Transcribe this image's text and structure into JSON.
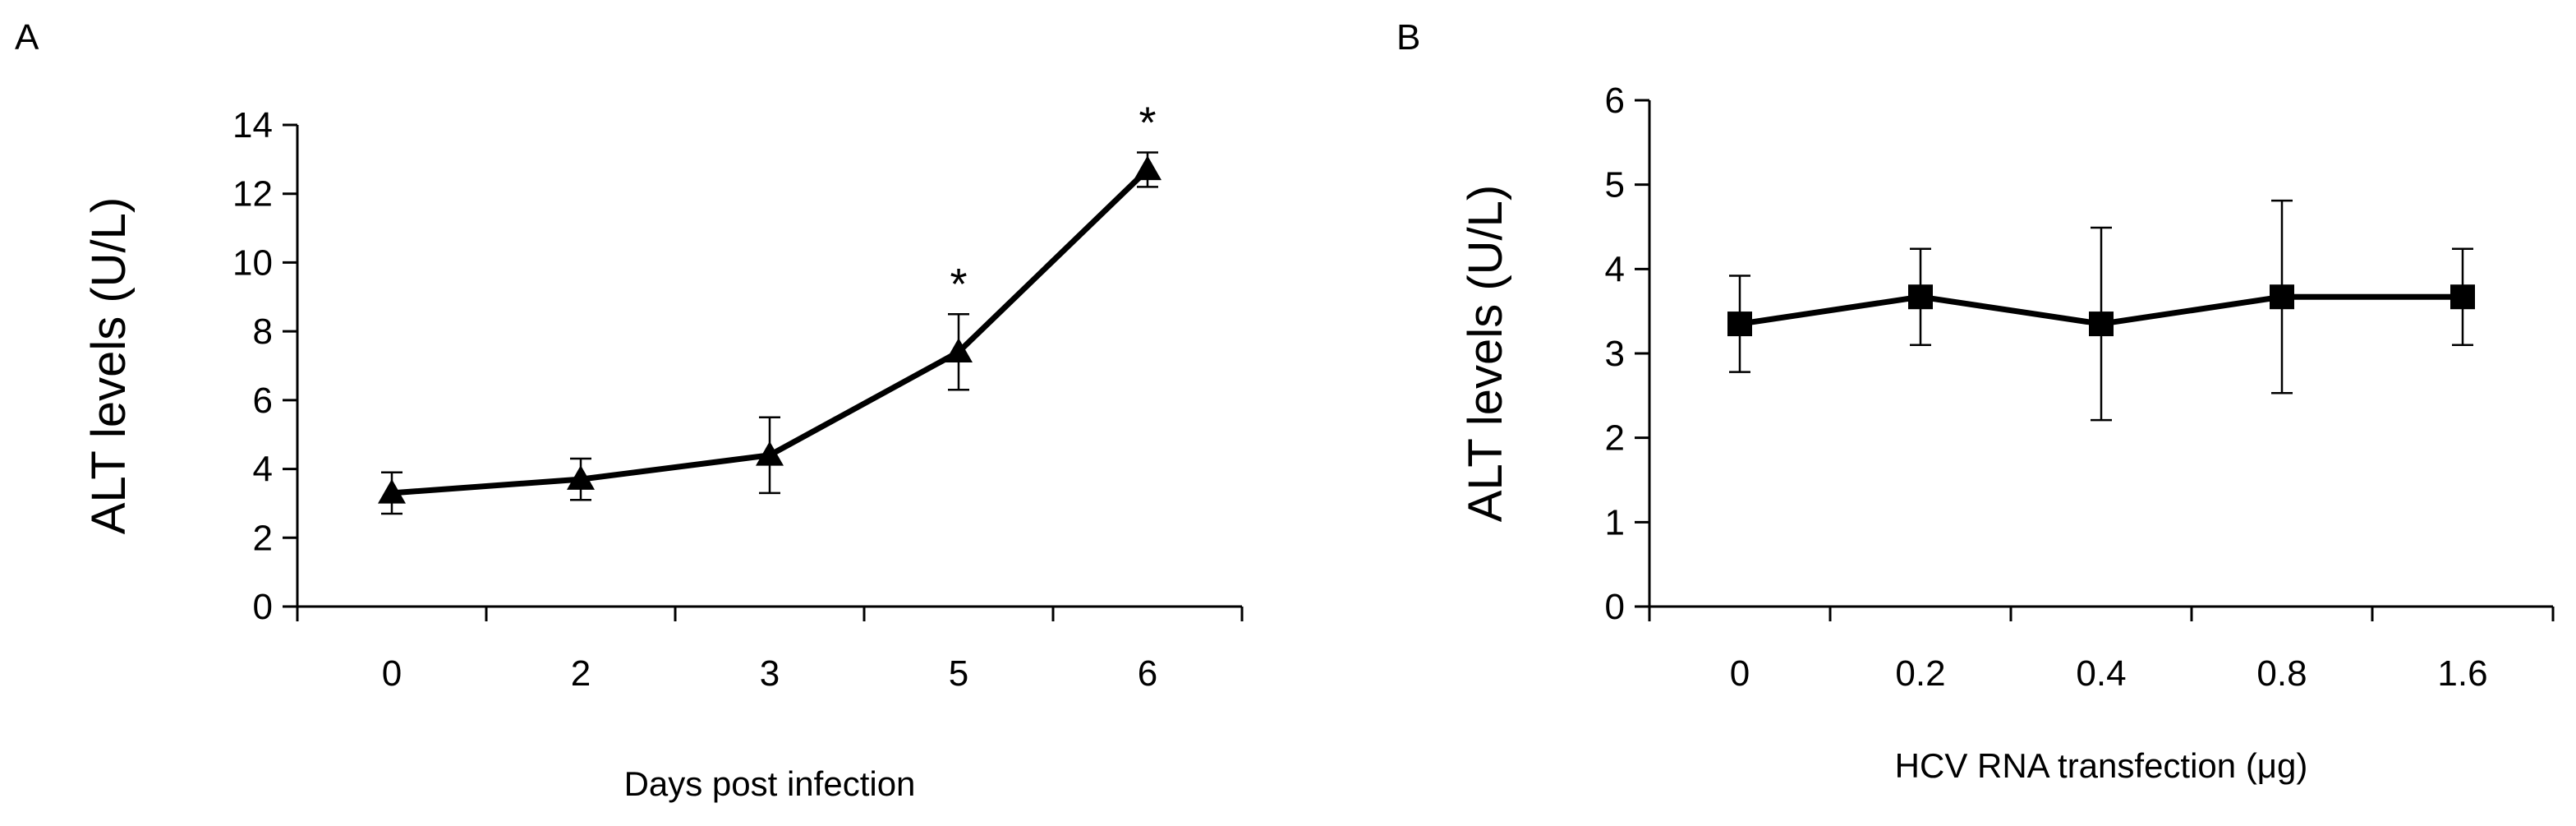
{
  "chart_data": [
    {
      "panel": "A",
      "type": "line",
      "marker": "triangle",
      "categories": [
        "0",
        "2",
        "3",
        "5",
        "6"
      ],
      "values": [
        3.3,
        3.7,
        4.4,
        7.4,
        12.7
      ],
      "errors": [
        0.6,
        0.6,
        1.1,
        1.1,
        0.5
      ],
      "annotations": [
        "",
        "",
        "",
        "*",
        "*"
      ],
      "ylabel": "ALT levels (U/L)",
      "xlabel": "Days post  infection",
      "ylim": [
        0,
        14
      ],
      "yticks": [
        "0",
        "2",
        "4",
        "6",
        "8",
        "10",
        "12",
        "14"
      ],
      "grid": false
    },
    {
      "panel": "B",
      "type": "line",
      "marker": "square",
      "categories": [
        "0",
        "0.2",
        "0.4",
        "0.8",
        "1.6"
      ],
      "values": [
        3.35,
        3.67,
        3.35,
        3.67,
        3.67
      ],
      "errors": [
        0.57,
        0.57,
        1.14,
        1.14,
        0.57
      ],
      "annotations": [
        "",
        "",
        "",
        "",
        ""
      ],
      "ylabel": "ALT levels (U/L)",
      "xlabel": "HCV RNA transfection (μg)",
      "ylim": [
        0,
        6
      ],
      "yticks": [
        "0",
        "1",
        "2",
        "3",
        "4",
        "5",
        "6"
      ],
      "grid": false
    }
  ]
}
